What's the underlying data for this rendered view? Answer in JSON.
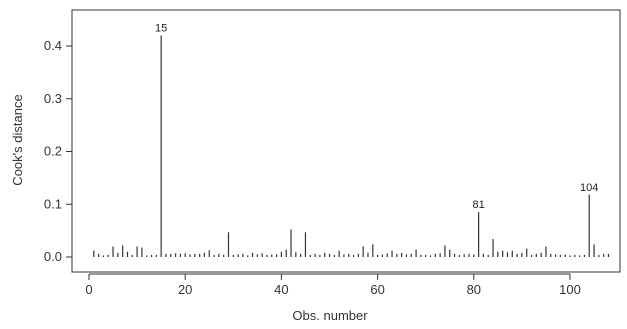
{
  "chart_data": {
    "type": "bar",
    "xlabel": "Obs. number",
    "ylabel": "Cook's distance",
    "xlim": [
      1,
      108
    ],
    "ylim": [
      0,
      0.42
    ],
    "xticks": [
      0,
      20,
      40,
      60,
      80,
      100
    ],
    "xtick_labels": [
      "0",
      "20",
      "40",
      "60",
      "80",
      "100"
    ],
    "yticks": [
      0.0,
      0.1,
      0.2,
      0.3,
      0.4
    ],
    "ytick_labels": [
      "0.0",
      "0.1",
      "0.2",
      "0.3",
      "0.4"
    ],
    "grid": false,
    "bar_color": "#333333",
    "x": [
      1,
      2,
      3,
      4,
      5,
      6,
      7,
      8,
      9,
      10,
      11,
      12,
      13,
      14,
      15,
      16,
      17,
      18,
      19,
      20,
      21,
      22,
      23,
      24,
      25,
      26,
      27,
      28,
      29,
      30,
      31,
      32,
      33,
      34,
      35,
      36,
      37,
      38,
      39,
      40,
      41,
      42,
      43,
      44,
      45,
      46,
      47,
      48,
      49,
      50,
      51,
      52,
      53,
      54,
      55,
      56,
      57,
      58,
      59,
      60,
      61,
      62,
      63,
      64,
      65,
      66,
      67,
      68,
      69,
      70,
      71,
      72,
      73,
      74,
      75,
      76,
      77,
      78,
      79,
      80,
      81,
      82,
      83,
      84,
      85,
      86,
      87,
      88,
      89,
      90,
      91,
      92,
      93,
      94,
      95,
      96,
      97,
      98,
      99,
      100,
      101,
      102,
      103,
      104,
      105,
      106,
      107,
      108
    ],
    "values": [
      0.012,
      0.006,
      0.003,
      0.004,
      0.02,
      0.008,
      0.022,
      0.01,
      0.004,
      0.02,
      0.018,
      0.003,
      0.004,
      0.004,
      0.42,
      0.006,
      0.006,
      0.007,
      0.006,
      0.007,
      0.005,
      0.006,
      0.006,
      0.008,
      0.013,
      0.004,
      0.006,
      0.004,
      0.047,
      0.004,
      0.005,
      0.006,
      0.003,
      0.008,
      0.005,
      0.007,
      0.004,
      0.005,
      0.005,
      0.01,
      0.014,
      0.052,
      0.009,
      0.006,
      0.047,
      0.004,
      0.006,
      0.004,
      0.008,
      0.006,
      0.004,
      0.012,
      0.005,
      0.006,
      0.004,
      0.006,
      0.02,
      0.008,
      0.024,
      0.004,
      0.005,
      0.007,
      0.012,
      0.006,
      0.008,
      0.005,
      0.006,
      0.014,
      0.004,
      0.004,
      0.003,
      0.006,
      0.007,
      0.022,
      0.014,
      0.006,
      0.004,
      0.005,
      0.006,
      0.005,
      0.085,
      0.006,
      0.004,
      0.034,
      0.01,
      0.012,
      0.009,
      0.012,
      0.006,
      0.008,
      0.016,
      0.004,
      0.006,
      0.008,
      0.02,
      0.006,
      0.005,
      0.004,
      0.005,
      0.003,
      0.004,
      0.003,
      0.004,
      0.118,
      0.024,
      0.004,
      0.006,
      0.006
    ],
    "annotations": [
      {
        "x": 15,
        "y": 0.42,
        "text": "15"
      },
      {
        "x": 81,
        "y": 0.085,
        "text": "81"
      },
      {
        "x": 104,
        "y": 0.118,
        "text": "104"
      }
    ]
  }
}
